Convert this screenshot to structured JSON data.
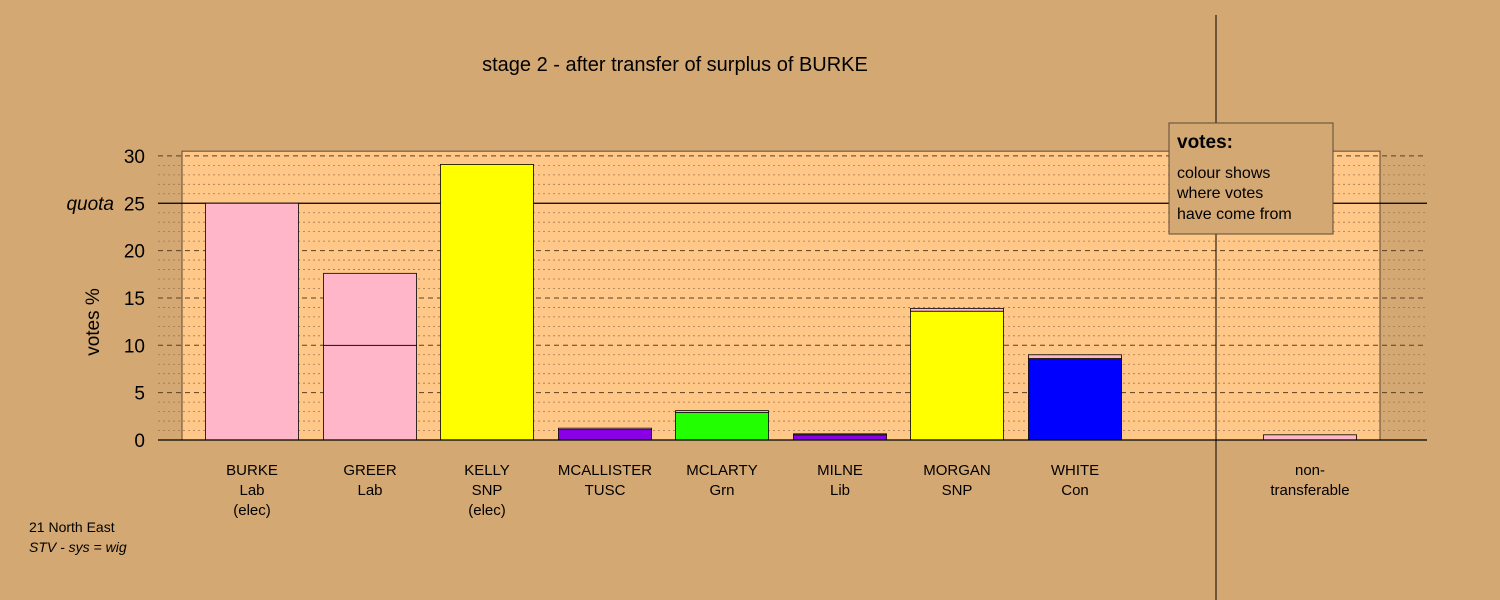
{
  "chart_data": {
    "type": "bar",
    "title": "stage 2 - after transfer of surplus of BURKE",
    "ylabel": "votes %",
    "ylim": [
      0,
      30
    ],
    "yticks": [
      0,
      5,
      10,
      15,
      20,
      25,
      30
    ],
    "quota_label": "quota",
    "quota_value": 25,
    "grid": true,
    "categories": [
      {
        "lines": [
          "BURKE",
          "Lab",
          "(elec)"
        ]
      },
      {
        "lines": [
          "GREER",
          "Lab"
        ]
      },
      {
        "lines": [
          "KELLY",
          "SNP",
          "(elec)"
        ]
      },
      {
        "lines": [
          "MCALLISTER",
          "TUSC"
        ]
      },
      {
        "lines": [
          "MCLARTY",
          "Grn"
        ]
      },
      {
        "lines": [
          "MILNE",
          "Lib"
        ]
      },
      {
        "lines": [
          "MORGAN",
          "SNP"
        ]
      },
      {
        "lines": [
          "WHITE",
          "Con"
        ]
      },
      {
        "lines": [
          "non-",
          "transferable"
        ]
      }
    ],
    "bars": [
      {
        "segments": [
          {
            "value": 25.0,
            "color": "#ffb6c8"
          }
        ]
      },
      {
        "segments": [
          {
            "value": 10.0,
            "color": "#ffb6c8"
          },
          {
            "value": 7.6,
            "color": "#ffb6c8"
          }
        ]
      },
      {
        "segments": [
          {
            "value": 29.1,
            "color": "#ffff00"
          }
        ]
      },
      {
        "segments": [
          {
            "value": 1.1,
            "color": "#8a00e6"
          },
          {
            "value": 0.15,
            "color": "#ffb6c8"
          }
        ]
      },
      {
        "segments": [
          {
            "value": 2.9,
            "color": "#22ff00"
          },
          {
            "value": 0.2,
            "color": "#ffb6c8"
          }
        ]
      },
      {
        "segments": [
          {
            "value": 0.55,
            "color": "#8a00e6"
          },
          {
            "value": 0.1,
            "color": "#ffb6c8"
          }
        ]
      },
      {
        "segments": [
          {
            "value": 13.6,
            "color": "#ffff00"
          },
          {
            "value": 0.3,
            "color": "#ffb6c8"
          }
        ]
      },
      {
        "segments": [
          {
            "value": 8.6,
            "color": "#0000ff"
          },
          {
            "value": 0.4,
            "color": "#ffb6c8"
          }
        ]
      },
      {
        "segments": [
          {
            "value": 0.55,
            "color": "#ffb6c8"
          }
        ]
      }
    ],
    "legend": {
      "title": "votes:",
      "lines": [
        "colour shows",
        "where votes",
        "have come from"
      ],
      "placement": "top-right"
    },
    "colors": {
      "background": "#d4a873",
      "plot_panel": "#ffc888"
    }
  },
  "footnote": {
    "line1": "21 North East",
    "line2": "STV - sys = wig"
  }
}
